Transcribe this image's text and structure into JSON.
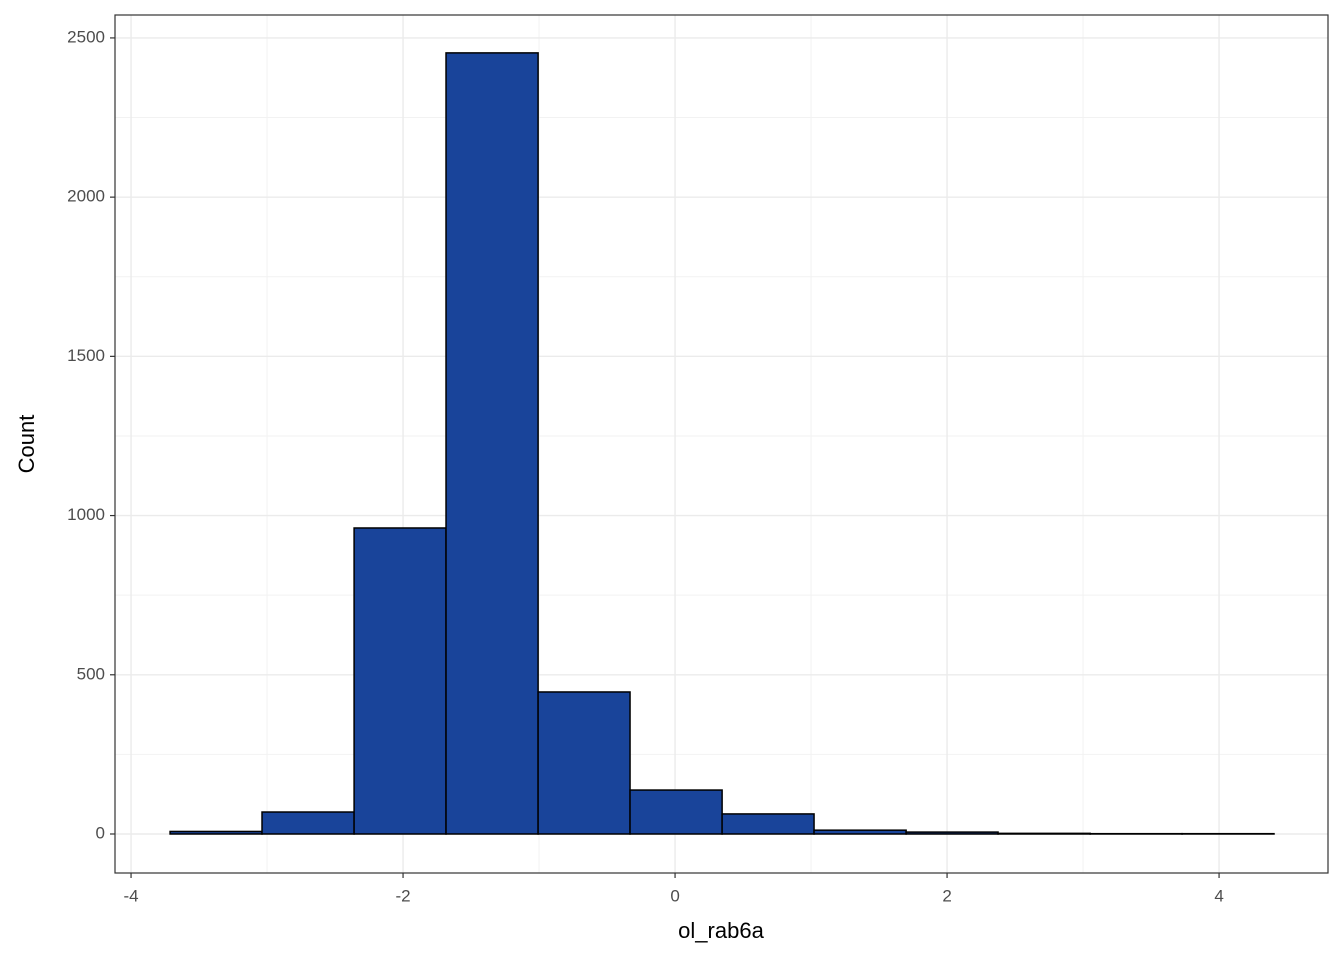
{
  "chart_data": {
    "type": "histogram",
    "x_label": "ol_rab6a",
    "y_label": "Count",
    "bins": [
      -3.713,
      -3.037,
      -2.36,
      -1.684,
      -1.007,
      -0.331,
      0.346,
      1.022,
      1.699,
      2.375,
      3.052,
      3.728,
      4.404
    ],
    "counts": [
      8,
      69,
      961,
      2453,
      446,
      138,
      63,
      12,
      6,
      2,
      1,
      1
    ],
    "color": "#19449a",
    "xlim": [
      -4.118,
      4.801
    ],
    "ylim": [
      -122.5,
      2572
    ],
    "xticks": [
      -4,
      -2,
      0,
      2,
      4
    ],
    "yticks": [
      0,
      500,
      1000,
      1500,
      2000,
      2500
    ],
    "grid": true
  }
}
